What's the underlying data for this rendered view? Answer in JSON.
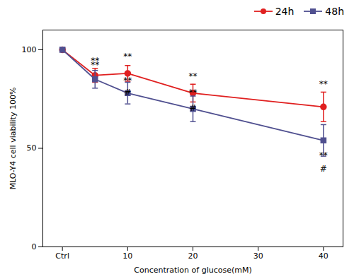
{
  "chart_data": {
    "type": "line",
    "xlabel": "Concentration of glucose(mM)",
    "ylabel": "MLO-Y4 cell viability 100%",
    "x": [
      0,
      5,
      10,
      20,
      40
    ],
    "series": [
      {
        "name": "24h",
        "color": "#e02020",
        "marker": "circle",
        "values": [
          100,
          87,
          88,
          78,
          71
        ],
        "errors": [
          1.0,
          3.5,
          4.0,
          4.5,
          7.5
        ]
      },
      {
        "name": "48h",
        "color": "#505090",
        "marker": "square",
        "values": [
          100,
          85,
          78,
          70,
          54
        ],
        "errors": [
          1.0,
          4.5,
          5.5,
          6.5,
          8.0
        ]
      }
    ],
    "annotations": [
      {
        "x": 5,
        "y": 93,
        "text": "**"
      },
      {
        "x": 10,
        "y": 95,
        "text": "**"
      },
      {
        "x": 20,
        "y": 85,
        "text": "**"
      },
      {
        "x": 40,
        "y": 81,
        "text": "**"
      },
      {
        "x": 5,
        "y": 91,
        "text": "**"
      },
      {
        "x": 10,
        "y": 83,
        "text": "**"
      },
      {
        "x": 20,
        "y": 77,
        "text": "**"
      },
      {
        "x": 40,
        "y": 45,
        "text": "**"
      },
      {
        "x": 10,
        "y": 77,
        "text": "#"
      },
      {
        "x": 20,
        "y": 69,
        "text": "#"
      },
      {
        "x": 40,
        "y": 38,
        "text": "#"
      }
    ],
    "xlim": [
      -3,
      43
    ],
    "xticks": [
      {
        "value": 0,
        "label": "Ctrl"
      },
      10,
      20,
      30,
      40
    ],
    "ylim": [
      0,
      110
    ],
    "yticks": [
      0,
      50,
      100
    ],
    "legend": "upper right",
    "grid": false
  }
}
